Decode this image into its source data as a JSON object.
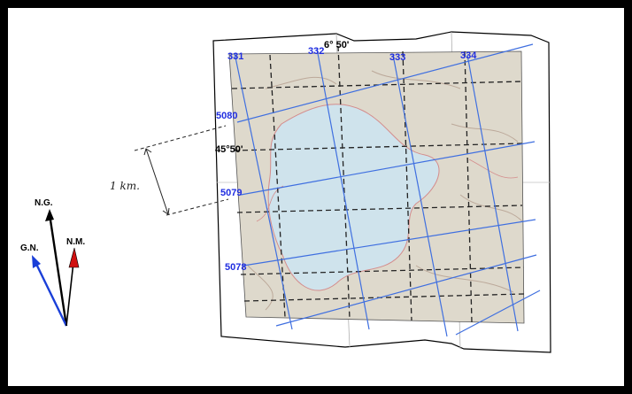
{
  "colors": {
    "frame": "#000000",
    "map_land": "#ded9cc",
    "map_water": "#cfe3ec",
    "grid_line": "#3f6fe0",
    "grid_label": "#1f2de0",
    "dashed_graticule": "#222222",
    "true_north_arrow": "#000000",
    "grid_north_arrow": "#1a3fd8",
    "magnetic_north_arrow": "#d01010"
  },
  "map": {
    "easting_labels": [
      "331",
      "332",
      "333",
      "334"
    ],
    "northing_labels": [
      "5080",
      "5079",
      "5078"
    ],
    "longitude_label": "6° 50'",
    "latitude_label": "45°50'"
  },
  "scale": {
    "label": "1 km."
  },
  "north_arrows": {
    "true_north": "N.G.",
    "grid_north": "G.N.",
    "magnetic_north": "N.M."
  }
}
